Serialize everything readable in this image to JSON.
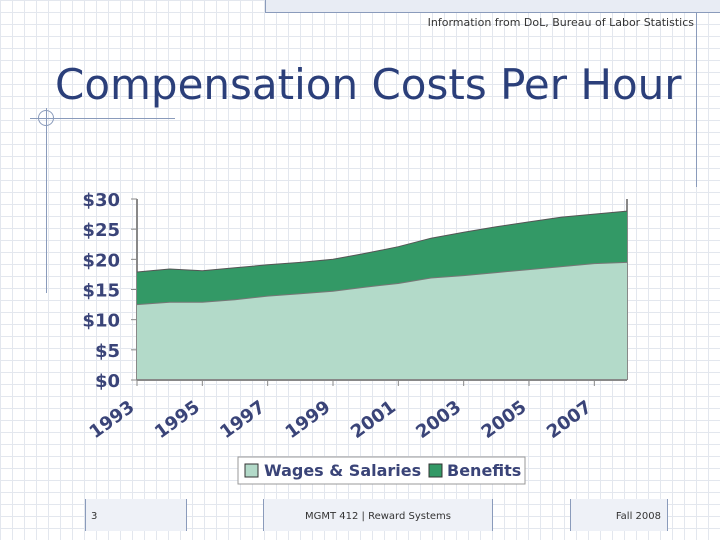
{
  "header": {
    "source": "Information from DoL, Bureau of Labor Statistics"
  },
  "slide": {
    "title": "Compensation Costs Per Hour"
  },
  "footer": {
    "page_number": "3",
    "course": "MGMT 412 | Reward Systems",
    "term": "Fall 2008"
  },
  "colors": {
    "wages": "#b3dac9",
    "benefits": "#339966",
    "text": "#3a4478",
    "title": "#2b3f7a"
  },
  "chart_data": {
    "type": "area",
    "stacked": true,
    "title": "",
    "xlabel": "",
    "ylabel": "",
    "x": [
      1993,
      1994,
      1995,
      1996,
      1997,
      1998,
      1999,
      2000,
      2001,
      2002,
      2003,
      2004,
      2005,
      2006,
      2007,
      2008
    ],
    "xtick_labels": [
      "1993",
      "1995",
      "1997",
      "1999",
      "2001",
      "2003",
      "2005",
      "2007"
    ],
    "ytick_labels": [
      "$30",
      "$25",
      "$20",
      "$15",
      "$10",
      "$5",
      "$0"
    ],
    "ylim": [
      0,
      30
    ],
    "series": [
      {
        "name": "Wages & Salaries",
        "values": [
          12.5,
          12.9,
          12.9,
          13.3,
          13.9,
          14.3,
          14.7,
          15.4,
          16.0,
          16.9,
          17.3,
          17.8,
          18.3,
          18.8,
          19.3,
          19.5
        ]
      },
      {
        "name": "Benefits",
        "values": [
          5.4,
          5.5,
          5.2,
          5.3,
          5.2,
          5.2,
          5.3,
          5.6,
          6.1,
          6.6,
          7.2,
          7.6,
          7.9,
          8.2,
          8.2,
          8.5
        ]
      }
    ],
    "legend_position": "bottom",
    "grid": false
  }
}
